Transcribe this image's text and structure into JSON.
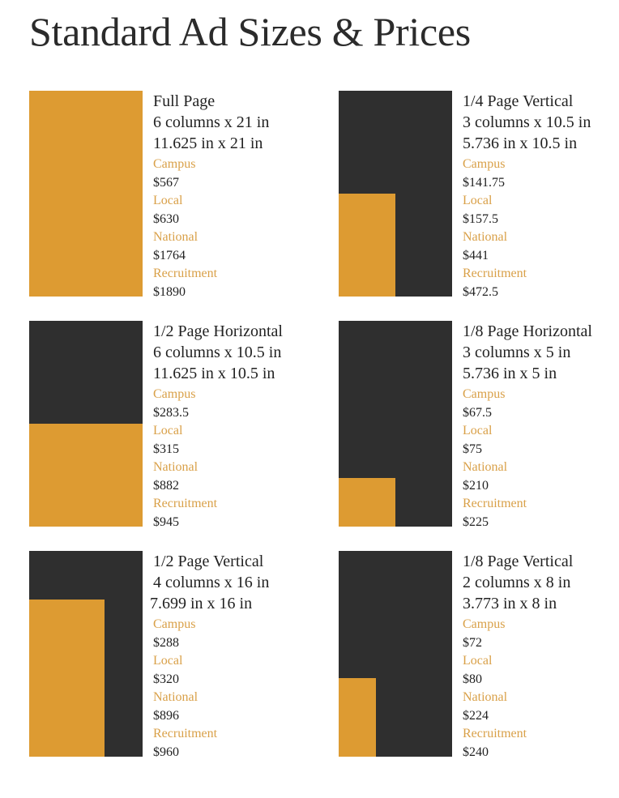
{
  "page": {
    "title": "Standard Ad Sizes & Prices"
  },
  "colors": {
    "accent": "#dd9b32",
    "dark": "#2f2f2f",
    "label": "#d9a048"
  },
  "ads": [
    {
      "name": "Full Page",
      "columns": "6 columns x 21 in",
      "dimensions": "11.625 in x 21 in",
      "coverage": {
        "width_fraction": 1.0,
        "height_fraction": 1.0
      },
      "prices": [
        {
          "label": "Campus",
          "value": "$567"
        },
        {
          "label": "Local",
          "value": "$630"
        },
        {
          "label": "National",
          "value": "$1764"
        },
        {
          "label": "Recruitment",
          "value": "$1890"
        }
      ]
    },
    {
      "name": "1/4 Page Vertical",
      "columns": "3 columns x 10.5 in",
      "dimensions": "5.736 in x 10.5 in",
      "coverage": {
        "width_fraction": 0.5,
        "height_fraction": 0.5
      },
      "prices": [
        {
          "label": "Campus",
          "value": "$141.75"
        },
        {
          "label": "Local",
          "value": "$157.5"
        },
        {
          "label": "National",
          "value": "$441"
        },
        {
          "label": "Recruitment",
          "value": "$472.5"
        }
      ]
    },
    {
      "name": "1/2 Page Horizontal",
      "columns": "6 columns x 10.5 in",
      "dimensions": "11.625 in x 10.5 in",
      "coverage": {
        "width_fraction": 1.0,
        "height_fraction": 0.5
      },
      "prices": [
        {
          "label": "Campus",
          "value": "$283.5"
        },
        {
          "label": "Local",
          "value": "$315"
        },
        {
          "label": "National",
          "value": "$882"
        },
        {
          "label": "Recruitment",
          "value": "$945"
        }
      ]
    },
    {
      "name": "1/8 Page Horizontal",
      "columns": "3 columns x 5 in",
      "dimensions": "5.736 in x 5 in",
      "coverage": {
        "width_fraction": 0.5,
        "height_fraction": 0.238
      },
      "prices": [
        {
          "label": "Campus",
          "value": "$67.5"
        },
        {
          "label": "Local",
          "value": "$75"
        },
        {
          "label": "National",
          "value": "$210"
        },
        {
          "label": "Recruitment",
          "value": "$225"
        }
      ]
    },
    {
      "name": "1/2 Page Vertical",
      "columns": "4 columns x 16 in",
      "dimensions": "7.699 in x 16 in",
      "coverage": {
        "width_fraction": 0.662,
        "height_fraction": 0.762
      },
      "prices": [
        {
          "label": "Campus",
          "value": "$288"
        },
        {
          "label": "Local",
          "value": "$320"
        },
        {
          "label": "National",
          "value": "$896"
        },
        {
          "label": "Recruitment",
          "value": "$960"
        }
      ]
    },
    {
      "name": "1/8 Page Vertical",
      "columns": "2 columns x 8 in",
      "dimensions": "3.773 in x 8 in",
      "coverage": {
        "width_fraction": 0.325,
        "height_fraction": 0.381
      },
      "prices": [
        {
          "label": "Campus",
          "value": "$72"
        },
        {
          "label": "Local",
          "value": "$80"
        },
        {
          "label": "National",
          "value": "$224"
        },
        {
          "label": "Recruitment",
          "value": "$240"
        }
      ]
    }
  ]
}
